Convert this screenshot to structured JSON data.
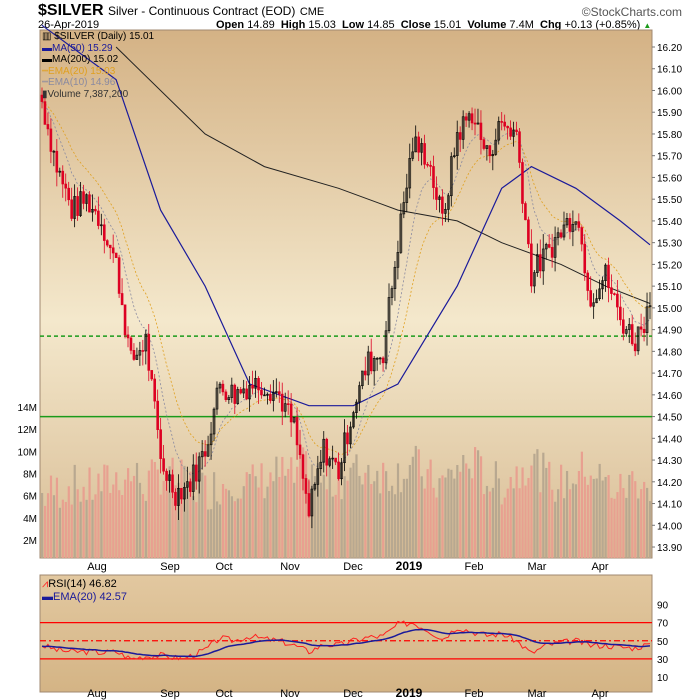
{
  "header": {
    "symbol": "$SILVER",
    "description": "Silver - Continuous Contract (EOD)",
    "exchange": "CME",
    "date": "26-Apr-2019",
    "brand": "©StockCharts.com",
    "open_label": "Open",
    "open": "14.89",
    "high_label": "High",
    "high": "15.03",
    "low_label": "Low",
    "low": "14.85",
    "close_label": "Close",
    "close": "15.01",
    "volume_label": "Volume",
    "volume": "7.4M",
    "chg_label": "Chg",
    "chg": "+0.13 (+0.85%)"
  },
  "legend": {
    "price": "$SILVER (Daily) 15.01",
    "ma50": "MA(50) 15.29",
    "ma200": "MA(200) 15.02",
    "ema20": "EMA(20) 15.03",
    "ema10": "EMA(10) 14.96",
    "volume": "Volume 7,387,200"
  },
  "rsi_legend": {
    "rsi": "RSI(14) 46.82",
    "ema": "EMA(20) 42.57"
  },
  "colors": {
    "up": "#000000",
    "down": "#dd0022",
    "ma50": "#1a1a9a",
    "ma200": "#222222",
    "ema20": "#e0a020",
    "ema10": "#8a8aa0",
    "support": "#1a9a1a",
    "rsi": "#ff2020",
    "rsi_ema": "#1a1a9a"
  },
  "chart_data": [
    {
      "type": "candlestick",
      "price_ticks": [
        "16.20",
        "16.10",
        "16.00",
        "15.90",
        "15.80",
        "15.70",
        "15.60",
        "15.50",
        "15.40",
        "15.30",
        "15.20",
        "15.10",
        "15.00",
        "14.90",
        "14.80",
        "14.70",
        "14.60",
        "14.50",
        "14.40",
        "14.30",
        "14.20",
        "14.10",
        "14.00",
        "13.90"
      ],
      "ylim": [
        13.9,
        16.2
      ],
      "volume_ticks": [
        "14M",
        "12M",
        "10M",
        "8M",
        "6M",
        "4M",
        "2M"
      ],
      "x_ticks": [
        "Aug",
        "Sep",
        "Oct",
        "Nov",
        "Dec",
        "2019",
        "Feb",
        "Mar",
        "Apr"
      ],
      "support_dashed": 14.87,
      "support_solid": 14.5,
      "weekly_dates": [
        "2018-07-13",
        "2018-07-20",
        "2018-07-27",
        "2018-08-03",
        "2018-08-10",
        "2018-08-17",
        "2018-08-24",
        "2018-08-31",
        "2018-09-07",
        "2018-09-14",
        "2018-09-21",
        "2018-09-28",
        "2018-10-05",
        "2018-10-12",
        "2018-10-19",
        "2018-10-26",
        "2018-11-02",
        "2018-11-09",
        "2018-11-16",
        "2018-11-23",
        "2018-11-30",
        "2018-12-07",
        "2018-12-14",
        "2018-12-21",
        "2018-12-28",
        "2019-01-04",
        "2019-01-11",
        "2019-01-18",
        "2019-01-25",
        "2019-02-01",
        "2019-02-08",
        "2019-02-15",
        "2019-02-22",
        "2019-03-01",
        "2019-03-08",
        "2019-03-15",
        "2019-03-22",
        "2019-03-29",
        "2019-04-05",
        "2019-04-12",
        "2019-04-19",
        "2019-04-26"
      ],
      "weekly_close": [
        15.95,
        15.65,
        15.45,
        15.5,
        15.4,
        15.2,
        14.75,
        14.85,
        14.3,
        14.15,
        14.2,
        14.35,
        14.65,
        14.6,
        14.65,
        14.65,
        14.6,
        14.45,
        14.05,
        14.35,
        14.25,
        14.55,
        14.75,
        14.8,
        15.3,
        15.75,
        15.7,
        15.4,
        15.8,
        15.9,
        15.7,
        15.85,
        15.8,
        15.15,
        15.25,
        15.35,
        15.45,
        15.05,
        15.15,
        14.95,
        14.85,
        15.01
      ],
      "weekly_volume_m": [
        6,
        6.5,
        7,
        6.5,
        7,
        7.5,
        8,
        7,
        8,
        7.5,
        7,
        6.5,
        7,
        7.5,
        7,
        7.5,
        8,
        7.5,
        9,
        7,
        7.5,
        8,
        8.5,
        8,
        8,
        9,
        7.5,
        7,
        8.5,
        9,
        7.5,
        7,
        8,
        9.5,
        7.5,
        7,
        8,
        8.5,
        7,
        6.5,
        7.5,
        7.4
      ],
      "ma50": [
        [
          0,
          16.3
        ],
        [
          5,
          16.05
        ],
        [
          8,
          15.45
        ],
        [
          11,
          15.1
        ],
        [
          14,
          14.65
        ],
        [
          18,
          14.55
        ],
        [
          21,
          14.55
        ],
        [
          24,
          14.65
        ],
        [
          28,
          15.1
        ],
        [
          31,
          15.55
        ],
        [
          33,
          15.65
        ],
        [
          36,
          15.55
        ],
        [
          39,
          15.4
        ],
        [
          41,
          15.29
        ]
      ],
      "ma200": [
        [
          5,
          16.2
        ],
        [
          11,
          15.8
        ],
        [
          15,
          15.65
        ],
        [
          20,
          15.55
        ],
        [
          24,
          15.45
        ],
        [
          28,
          15.4
        ],
        [
          31,
          15.3
        ],
        [
          35,
          15.2
        ],
        [
          38,
          15.1
        ],
        [
          41,
          15.02
        ]
      ]
    },
    {
      "type": "line",
      "title": "RSI(14)",
      "ticks": [
        "90",
        "70",
        "50",
        "30",
        "10"
      ],
      "ylim": [
        0,
        100
      ],
      "levels": [
        70,
        50,
        30
      ],
      "weekly_rsi": [
        45,
        40,
        38,
        38,
        37,
        38,
        30,
        33,
        34,
        31,
        33,
        40,
        53,
        50,
        55,
        52,
        50,
        45,
        38,
        46,
        45,
        50,
        54,
        55,
        68,
        70,
        62,
        52,
        65,
        60,
        56,
        58,
        50,
        36,
        45,
        48,
        50,
        45,
        45,
        43,
        42,
        46.82
      ]
    }
  ]
}
